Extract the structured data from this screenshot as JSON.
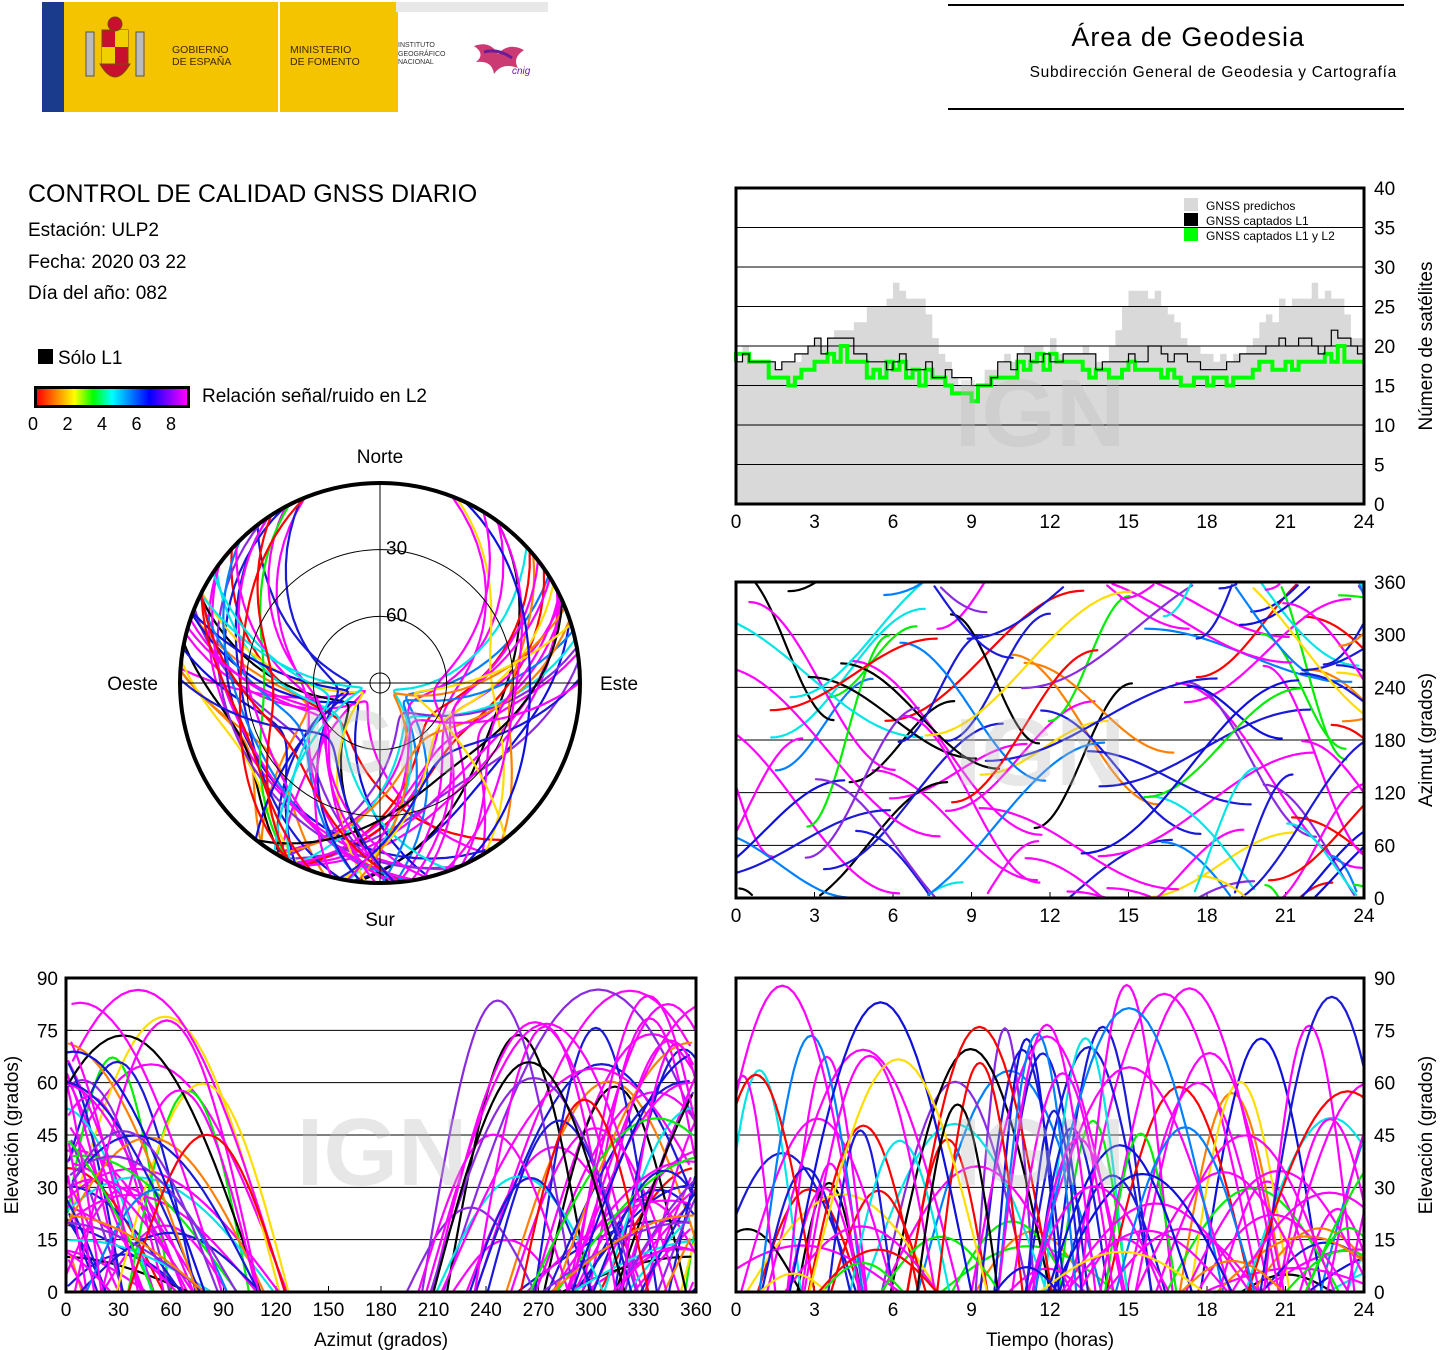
{
  "header": {
    "gov_left": "GOBIERNO\nDE ESPAÑA",
    "gov_right": "MINISTERIO\nDE FOMENTO",
    "institute": "INSTITUTO\nGEOGRÁFICO\nNACIONAL",
    "cnig": "cnig",
    "area_title": "Área de Geodesia",
    "area_subtitle": "Subdirección General de Geodesia y Cartografía"
  },
  "info": {
    "title": "CONTROL DE CALIDAD GNSS DIARIO",
    "station": "Estación: ULP2",
    "date": "Fecha: 2020 03 22",
    "doy": "Día del año: 082"
  },
  "legend": {
    "only_l1": "Sólo L1",
    "snr_label": "Relación señal/ruido en L2",
    "snr_ticks": [
      "0",
      "2",
      "4",
      "6",
      "8"
    ],
    "snr_colors": [
      "#ff0000",
      "#ff8000",
      "#ffff00",
      "#00ff00",
      "#00ffff",
      "#0080ff",
      "#0000ff",
      "#8000ff",
      "#ff00ff"
    ]
  },
  "watermark": "IGN",
  "chart_data": [
    {
      "type": "area",
      "name": "satellites",
      "xlim": [
        0,
        24
      ],
      "ylim": [
        0,
        40
      ],
      "xticks": [
        "0",
        "3",
        "6",
        "9",
        "12",
        "15",
        "18",
        "21",
        "24"
      ],
      "yticks": [
        "0",
        "5",
        "10",
        "15",
        "20",
        "25",
        "30",
        "35",
        "40"
      ],
      "ylabel": "Número de satélites",
      "legend_position": "top-right",
      "legend": [
        "GNSS predichos",
        "GNSS captados L1",
        "GNSS captados L1 y L2"
      ],
      "colors": {
        "predicted": "#d9d9d9",
        "l1": "#000000",
        "l1l2": "#00ff00"
      },
      "x": [
        0,
        1,
        2,
        3,
        4,
        5,
        6,
        7,
        8,
        9,
        10,
        11,
        12,
        13,
        14,
        15,
        16,
        17,
        18,
        19,
        20,
        21,
        22,
        23,
        24
      ],
      "series": [
        {
          "name": "GNSS predichos",
          "values": [
            19,
            18,
            17,
            20,
            22,
            24,
            27,
            25,
            17,
            15,
            18,
            20,
            20,
            19,
            18,
            27,
            26,
            21,
            18,
            19,
            22,
            26,
            27,
            26,
            18
          ]
        },
        {
          "name": "GNSS captados L1",
          "values": [
            19,
            18,
            17,
            20,
            21,
            19,
            18,
            18,
            16,
            15,
            17,
            19,
            19,
            19,
            18,
            19,
            19,
            18,
            17,
            18,
            19,
            20,
            20,
            21,
            18
          ]
        },
        {
          "name": "GNSS captados L1 y L2",
          "values": [
            18,
            17,
            16,
            18,
            19,
            17,
            17,
            16,
            15,
            14,
            16,
            18,
            18,
            17,
            16,
            17,
            17,
            16,
            15,
            16,
            17,
            18,
            18,
            19,
            17
          ]
        }
      ]
    },
    {
      "type": "scatter",
      "name": "skyplot",
      "directions": {
        "north": "Norte",
        "south": "Sur",
        "east": "Este",
        "west": "Oeste"
      },
      "rings": [
        "30",
        "60"
      ]
    },
    {
      "type": "scatter",
      "name": "azimuth-vs-time",
      "xlim": [
        0,
        24
      ],
      "ylim": [
        0,
        360
      ],
      "xticks": [
        "0",
        "3",
        "6",
        "9",
        "12",
        "15",
        "18",
        "21",
        "24"
      ],
      "yticks": [
        "0",
        "60",
        "120",
        "180",
        "240",
        "300",
        "360"
      ],
      "ylabel": "Azimut (grados)"
    },
    {
      "type": "scatter",
      "name": "elevation-vs-azimuth",
      "xlim": [
        0,
        360
      ],
      "ylim": [
        0,
        90
      ],
      "xticks": [
        "0",
        "30",
        "60",
        "90",
        "120",
        "150",
        "180",
        "210",
        "240",
        "270",
        "300",
        "330",
        "360"
      ],
      "yticks": [
        "0",
        "15",
        "30",
        "45",
        "60",
        "75",
        "90"
      ],
      "xlabel": "Azimut (grados)",
      "ylabel": "Elevación (grados)"
    },
    {
      "type": "scatter",
      "name": "elevation-vs-time",
      "xlim": [
        0,
        24
      ],
      "ylim": [
        0,
        90
      ],
      "xticks": [
        "0",
        "3",
        "6",
        "9",
        "12",
        "15",
        "18",
        "21",
        "24"
      ],
      "yticks": [
        "0",
        "15",
        "30",
        "45",
        "60",
        "75",
        "90"
      ],
      "xlabel": "Tiempo (horas)",
      "ylabel": "Elevación (grados)"
    }
  ]
}
